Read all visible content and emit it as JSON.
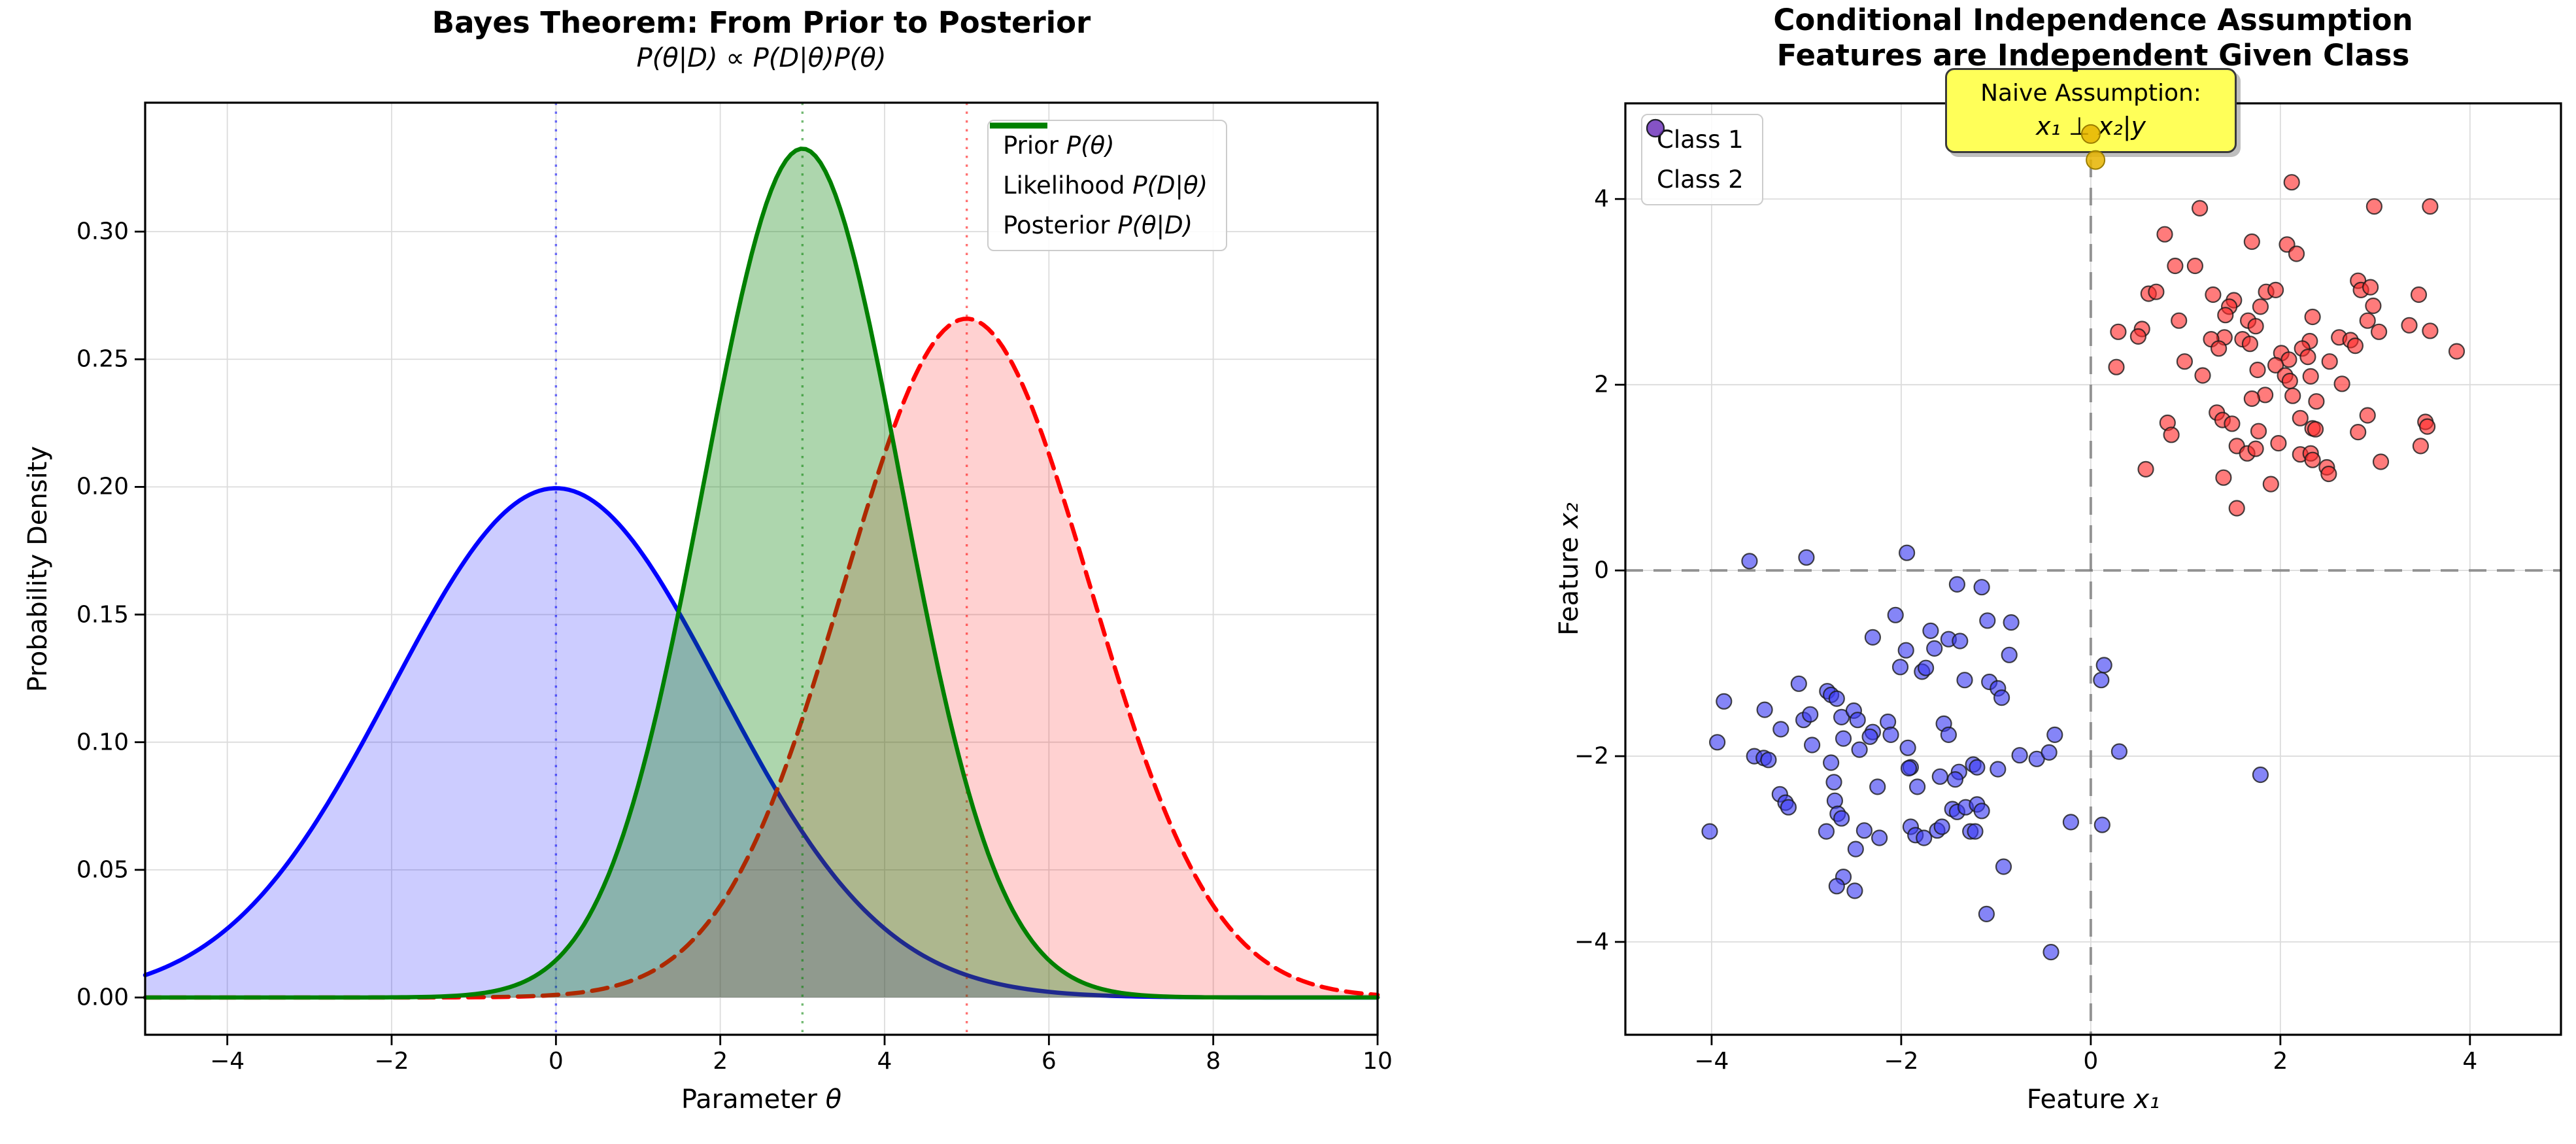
{
  "figure": {
    "background": "#ffffff"
  },
  "chart_data": [
    {
      "type": "line",
      "title": "Bayes Theorem: From Prior to Posterior",
      "subtitle": "P(θ|D) ∝ P(D|θ)P(θ)",
      "xlabel_text": "Parameter ",
      "xlabel_math": "θ",
      "ylabel": "Probability Density",
      "xlim": [
        -5,
        10
      ],
      "ylim": [
        -0.0146,
        0.3505
      ],
      "grid": true,
      "x_ticks": [
        {
          "v": -4,
          "label": "−4"
        },
        {
          "v": -2,
          "label": "−2"
        },
        {
          "v": 0,
          "label": "0"
        },
        {
          "v": 2,
          "label": "2"
        },
        {
          "v": 4,
          "label": "4"
        },
        {
          "v": 6,
          "label": "6"
        },
        {
          "v": 8,
          "label": "8"
        },
        {
          "v": 10,
          "label": "10"
        }
      ],
      "y_ticks": [
        {
          "v": 0.0,
          "label": "0.00"
        },
        {
          "v": 0.05,
          "label": "0.05"
        },
        {
          "v": 0.1,
          "label": "0.10"
        },
        {
          "v": 0.15,
          "label": "0.15"
        },
        {
          "v": 0.2,
          "label": "0.20"
        },
        {
          "v": 0.25,
          "label": "0.25"
        },
        {
          "v": 0.3,
          "label": "0.30"
        }
      ],
      "legend_position": "upper right",
      "curves": [
        {
          "name": "prior",
          "legend_prefix": "Prior ",
          "legend_math": "P(θ)",
          "color": "#0000ff",
          "linestyle": "solid",
          "fill_opacity": 0.2,
          "distribution": "normal",
          "mean": 0,
          "sigma": 2.0,
          "peak": 0.1995,
          "vline_x": 0
        },
        {
          "name": "likelihood",
          "legend_prefix": "Likelihood ",
          "legend_math": "P(D|θ)",
          "color": "#ff0000",
          "linestyle": "dashed",
          "fill_opacity": 0.18,
          "distribution": "normal",
          "mean": 5,
          "sigma": 1.5,
          "peak": 0.2659,
          "vline_x": 5
        },
        {
          "name": "posterior",
          "legend_prefix": "Posterior ",
          "legend_math": "P(θ|D)",
          "color": "#008000",
          "linestyle": "solid",
          "fill_opacity": 0.32,
          "distribution": "normal",
          "mean": 3,
          "sigma": 1.2,
          "peak": 0.3325,
          "vline_x": 3
        }
      ]
    },
    {
      "type": "scatter",
      "title_line1": "Conditional Independence Assumption",
      "title_line2": "Features are Independent Given Class",
      "xlabel_text": "Feature ",
      "xlabel_math": "x₁",
      "ylabel_text": "Feature ",
      "ylabel_math": "x₂",
      "xlim": [
        -4.91,
        4.96
      ],
      "ylim": [
        -5.0,
        5.03
      ],
      "grid": true,
      "x_ticks": [
        {
          "v": -4,
          "label": "−4"
        },
        {
          "v": -2,
          "label": "−2"
        },
        {
          "v": 0,
          "label": "0"
        },
        {
          "v": 2,
          "label": "2"
        },
        {
          "v": 4,
          "label": "4"
        }
      ],
      "y_ticks": [
        {
          "v": -4,
          "label": "−4"
        },
        {
          "v": -2,
          "label": "−2"
        },
        {
          "v": 0,
          "label": "0"
        },
        {
          "v": 2,
          "label": "2"
        },
        {
          "v": 4,
          "label": "4"
        }
      ],
      "zero_lines": {
        "color": "#7f7f7f",
        "style": "dashed"
      },
      "legend_position": "upper left",
      "series": [
        {
          "name": "Class 1",
          "color": "#ff2a2a",
          "edge": "#1a1a1a",
          "mean": [
            2,
            2
          ],
          "points": [
            [
              2.12,
              4.18
            ],
            [
              1.15,
              3.9
            ],
            [
              2.99,
              3.92
            ],
            [
              3.58,
              3.92
            ],
            [
              0.78,
              3.62
            ],
            [
              1.7,
              3.54
            ],
            [
              2.07,
              3.51
            ],
            [
              2.17,
              3.41
            ],
            [
              0.89,
              3.28
            ],
            [
              1.1,
              3.28
            ],
            [
              0.61,
              2.98
            ],
            [
              0.69,
              3.0
            ],
            [
              1.29,
              2.97
            ],
            [
              1.51,
              2.91
            ],
            [
              1.85,
              3.0
            ],
            [
              1.95,
              3.02
            ],
            [
              2.82,
              3.12
            ],
            [
              2.85,
              3.02
            ],
            [
              2.95,
              3.05
            ],
            [
              3.46,
              2.97
            ],
            [
              1.46,
              2.84
            ],
            [
              1.79,
              2.84
            ],
            [
              2.98,
              2.85
            ],
            [
              0.54,
              2.6
            ],
            [
              0.93,
              2.69
            ],
            [
              1.42,
              2.75
            ],
            [
              1.66,
              2.69
            ],
            [
              1.74,
              2.63
            ],
            [
              2.34,
              2.73
            ],
            [
              2.92,
              2.69
            ],
            [
              3.04,
              2.57
            ],
            [
              3.36,
              2.64
            ],
            [
              3.58,
              2.58
            ],
            [
              0.5,
              2.52
            ],
            [
              1.41,
              2.51
            ],
            [
              1.6,
              2.49
            ],
            [
              1.68,
              2.44
            ],
            [
              1.27,
              2.49
            ],
            [
              1.35,
              2.39
            ],
            [
              2.31,
              2.47
            ],
            [
              2.62,
              2.51
            ],
            [
              2.74,
              2.48
            ],
            [
              2.79,
              2.42
            ],
            [
              3.86,
              2.36
            ],
            [
              0.99,
              2.25
            ],
            [
              2.01,
              2.34
            ],
            [
              2.09,
              2.27
            ],
            [
              2.23,
              2.39
            ],
            [
              2.29,
              2.3
            ],
            [
              2.52,
              2.25
            ],
            [
              1.18,
              2.1
            ],
            [
              1.76,
              2.16
            ],
            [
              1.95,
              2.21
            ],
            [
              2.05,
              2.1
            ],
            [
              2.1,
              2.04
            ],
            [
              2.32,
              2.09
            ],
            [
              2.65,
              2.01
            ],
            [
              1.84,
              1.89
            ],
            [
              2.13,
              1.88
            ],
            [
              2.38,
              1.82
            ],
            [
              1.7,
              1.85
            ],
            [
              1.33,
              1.7
            ],
            [
              1.39,
              1.62
            ],
            [
              1.49,
              1.58
            ],
            [
              0.81,
              1.59
            ],
            [
              0.85,
              1.46
            ],
            [
              2.21,
              1.64
            ],
            [
              2.34,
              1.53
            ],
            [
              2.37,
              1.52
            ],
            [
              2.92,
              1.67
            ],
            [
              2.82,
              1.49
            ],
            [
              3.53,
              1.6
            ],
            [
              3.55,
              1.55
            ],
            [
              3.48,
              1.34
            ],
            [
              1.77,
              1.5
            ],
            [
              1.54,
              1.34
            ],
            [
              1.65,
              1.26
            ],
            [
              1.74,
              1.31
            ],
            [
              1.98,
              1.37
            ],
            [
              2.21,
              1.25
            ],
            [
              2.32,
              1.26
            ],
            [
              2.34,
              1.19
            ],
            [
              3.06,
              1.17
            ],
            [
              0.58,
              1.09
            ],
            [
              2.49,
              1.11
            ],
            [
              2.51,
              1.04
            ],
            [
              1.4,
              1.0
            ],
            [
              1.9,
              0.93
            ],
            [
              1.54,
              0.67
            ],
            [
              0.29,
              2.57
            ],
            [
              0.27,
              2.19
            ]
          ]
        },
        {
          "name": "Class 2",
          "color": "#3a3af2",
          "edge": "#1a1a1a",
          "mean": [
            -2,
            -2
          ],
          "points": [
            [
              -3.6,
              0.1
            ],
            [
              -3.0,
              0.14
            ],
            [
              -1.94,
              0.19
            ],
            [
              -1.41,
              -0.15
            ],
            [
              -1.15,
              -0.18
            ],
            [
              -2.06,
              -0.48
            ],
            [
              -1.09,
              -0.54
            ],
            [
              -0.84,
              -0.56
            ],
            [
              -2.3,
              -0.72
            ],
            [
              -1.69,
              -0.65
            ],
            [
              -1.65,
              -0.84
            ],
            [
              -1.5,
              -0.74
            ],
            [
              -1.38,
              -0.76
            ],
            [
              -1.95,
              -0.86
            ],
            [
              -0.86,
              -0.91
            ],
            [
              -2.01,
              -1.04
            ],
            [
              -1.78,
              -1.09
            ],
            [
              -1.74,
              -1.05
            ],
            [
              0.14,
              -1.02
            ],
            [
              0.11,
              -1.18
            ],
            [
              -1.33,
              -1.18
            ],
            [
              -1.07,
              -1.2
            ],
            [
              -0.98,
              -1.27
            ],
            [
              -0.94,
              -1.37
            ],
            [
              -3.08,
              -1.22
            ],
            [
              -2.78,
              -1.3
            ],
            [
              -3.87,
              -1.41
            ],
            [
              -3.44,
              -1.5
            ],
            [
              -3.03,
              -1.61
            ],
            [
              -3.27,
              -1.71
            ],
            [
              -2.96,
              -1.55
            ],
            [
              -2.74,
              -1.34
            ],
            [
              -2.68,
              -1.38
            ],
            [
              -2.63,
              -1.58
            ],
            [
              -2.5,
              -1.51
            ],
            [
              -2.46,
              -1.61
            ],
            [
              -2.61,
              -1.81
            ],
            [
              -2.44,
              -1.93
            ],
            [
              -2.3,
              -1.74
            ],
            [
              -2.33,
              -1.79
            ],
            [
              -2.14,
              -1.63
            ],
            [
              -2.11,
              -1.77
            ],
            [
              -2.94,
              -1.88
            ],
            [
              -3.94,
              -1.85
            ],
            [
              -1.93,
              -1.91
            ],
            [
              -1.9,
              -2.12
            ],
            [
              -1.55,
              -1.65
            ],
            [
              -1.5,
              -1.77
            ],
            [
              -0.38,
              -1.77
            ],
            [
              0.3,
              -1.95
            ],
            [
              -3.55,
              -2.0
            ],
            [
              -3.45,
              -2.02
            ],
            [
              -3.4,
              -2.04
            ],
            [
              -2.74,
              -2.07
            ],
            [
              -1.92,
              -2.13
            ],
            [
              -1.24,
              -2.09
            ],
            [
              -0.75,
              -1.99
            ],
            [
              -0.57,
              -2.03
            ],
            [
              -1.39,
              -2.17
            ],
            [
              -1.2,
              -2.12
            ],
            [
              -1.59,
              -2.22
            ],
            [
              -1.43,
              -2.25
            ],
            [
              -0.98,
              -2.14
            ],
            [
              -0.44,
              -1.96
            ],
            [
              -2.71,
              -2.28
            ],
            [
              -2.25,
              -2.33
            ],
            [
              -1.83,
              -2.33
            ],
            [
              -3.28,
              -2.41
            ],
            [
              -3.22,
              -2.5
            ],
            [
              -3.19,
              -2.55
            ],
            [
              -2.7,
              -2.48
            ],
            [
              -2.67,
              -2.62
            ],
            [
              -2.63,
              -2.67
            ],
            [
              -2.79,
              -2.81
            ],
            [
              -2.39,
              -2.8
            ],
            [
              -2.23,
              -2.88
            ],
            [
              -2.48,
              -3.0
            ],
            [
              -4.02,
              -2.81
            ],
            [
              -1.9,
              -2.76
            ],
            [
              -1.85,
              -2.85
            ],
            [
              -1.76,
              -2.88
            ],
            [
              -1.62,
              -2.8
            ],
            [
              -1.57,
              -2.76
            ],
            [
              -1.46,
              -2.57
            ],
            [
              -1.41,
              -2.6
            ],
            [
              -1.32,
              -2.55
            ],
            [
              -1.2,
              -2.52
            ],
            [
              -1.15,
              -2.59
            ],
            [
              -1.27,
              -2.81
            ],
            [
              -1.22,
              -2.81
            ],
            [
              -0.21,
              -2.71
            ],
            [
              0.12,
              -2.74
            ],
            [
              -0.92,
              -3.19
            ],
            [
              -2.61,
              -3.3
            ],
            [
              -2.68,
              -3.4
            ],
            [
              -2.49,
              -3.45
            ],
            [
              -1.1,
              -3.7
            ],
            [
              -0.42,
              -4.11
            ],
            [
              1.79,
              -2.2
            ]
          ]
        }
      ],
      "highlight_points": {
        "color": "#e6b400",
        "edge": "#9a7d00",
        "points": [
          [
            0.0,
            4.7
          ],
          [
            0.05,
            4.42
          ]
        ]
      },
      "annotation": {
        "line1": "Naive Assumption:",
        "line2": "x₁ ⊥ x₂|y",
        "bg": "#ffff59",
        "anchor_x": 0
      }
    }
  ]
}
